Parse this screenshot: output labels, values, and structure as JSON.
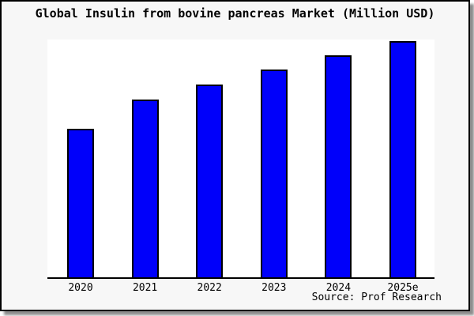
{
  "title": "Global Insulin from bovine pancreas Market (Million USD)",
  "source_note": "Source: Prof Research",
  "colors": {
    "bar_fill": "#0000fa",
    "bar_border": "#000000",
    "frame_border": "#000000",
    "card_background": "#f7f7f7",
    "plot_background": "#ffffff",
    "text": "#000000",
    "shadow": "#8a8a8a"
  },
  "chart_data": {
    "type": "bar",
    "title": "Global Insulin from bovine pancreas Market (Million USD)",
    "categories": [
      "2020",
      "2021",
      "2022",
      "2023",
      "2024",
      "2025e"
    ],
    "values": [
      189,
      226,
      245,
      264,
      282,
      300
    ],
    "values_note": "No y-axis or data labels shown in the image; values are relative bar heights estimated from pixels (taller = larger market).",
    "xlabel": "",
    "ylabel": "",
    "ylim": [
      0,
      302
    ],
    "grid": false,
    "legend": false,
    "bar_color": "#0000fa",
    "source": "Source: Prof Research"
  }
}
